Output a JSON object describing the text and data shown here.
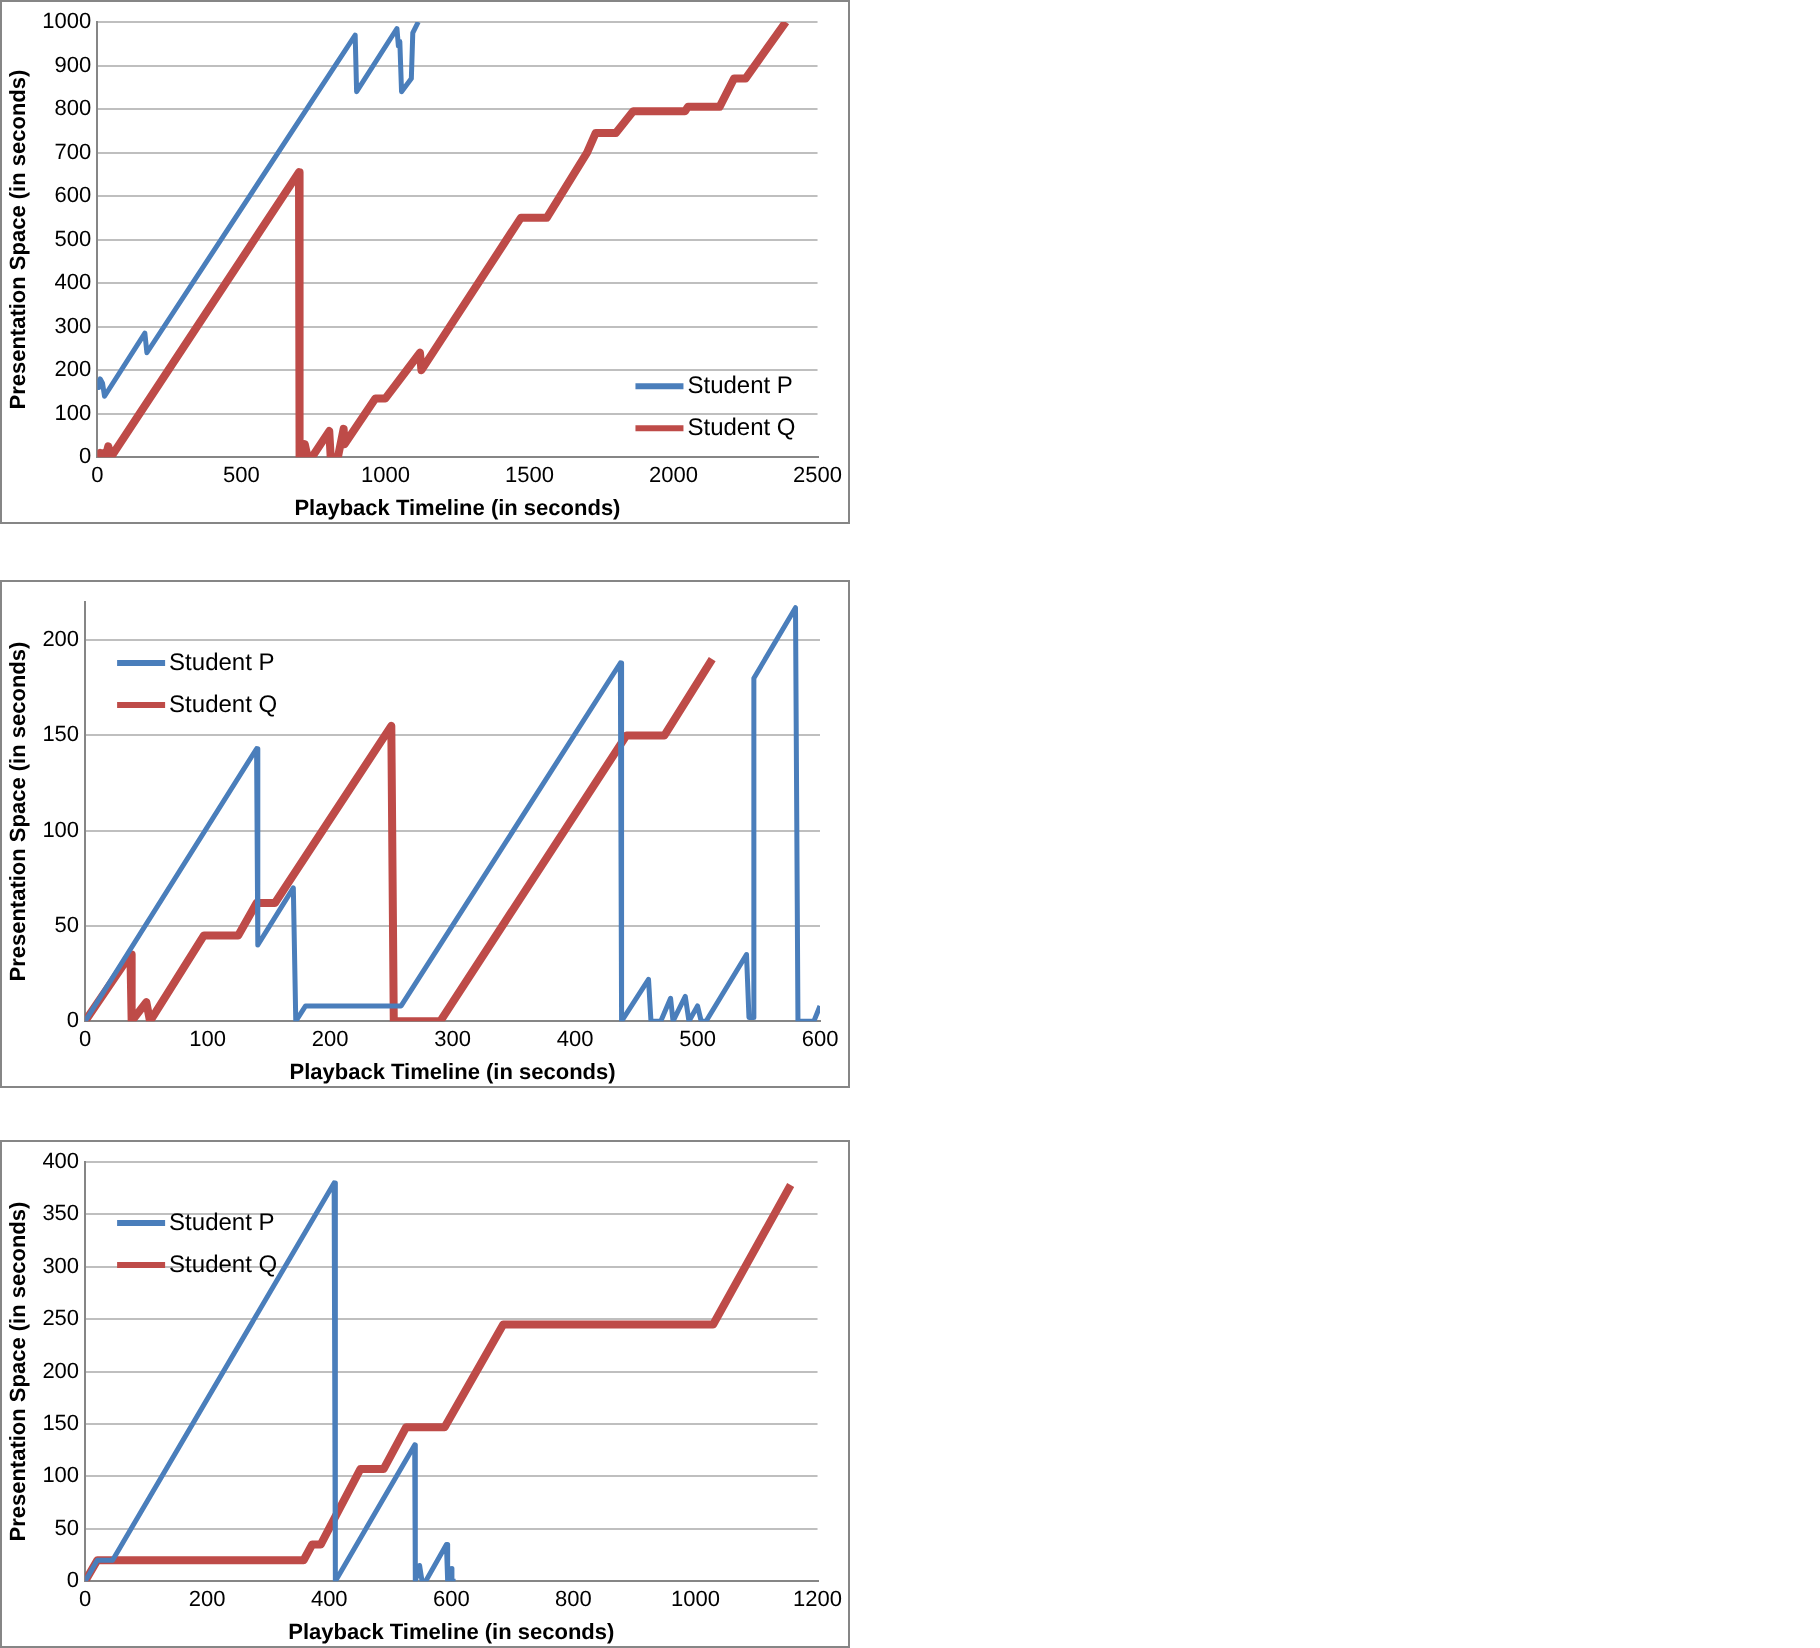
{
  "chart_data": [
    {
      "type": "line",
      "xlabel": "Playback Timeline (in seconds)",
      "ylabel": "Presentation Space (in seconds)",
      "xlim": [
        0,
        2500
      ],
      "xticks": [
        0,
        500,
        1000,
        1500,
        2000,
        2500
      ],
      "ylim": [
        0,
        1000
      ],
      "yticks": [
        0,
        100,
        200,
        300,
        400,
        500,
        600,
        700,
        800,
        900,
        1000
      ],
      "grid": "y",
      "legend": "bottom right",
      "series": [
        {
          "name": "Student P",
          "color": "#4a7ebb",
          "x": [
            0,
            5,
            10,
            18,
            25,
            165,
            172,
            895,
            900,
            1040,
            1045,
            1050,
            1056,
            1090,
            1095,
            1114
          ],
          "values": [
            180,
            160,
            180,
            170,
            140,
            285,
            240,
            970,
            840,
            985,
            945,
            955,
            840,
            870,
            975,
            1000
          ]
        },
        {
          "name": "Student Q",
          "color": "#be4b48",
          "x": [
            0,
            10,
            18,
            25,
            30,
            38,
            45,
            52,
            700,
            702,
            720,
            730,
            745,
            805,
            810,
            835,
            855,
            858,
            965,
            1000,
            1120,
            1125,
            1470,
            1560,
            1700,
            1730,
            1800,
            1860,
            2040,
            2050,
            2160,
            2210,
            2250,
            2390
          ],
          "values": [
            0,
            10,
            5,
            10,
            5,
            25,
            5,
            5,
            655,
            0,
            30,
            0,
            0,
            60,
            0,
            0,
            65,
            30,
            135,
            135,
            240,
            200,
            550,
            550,
            700,
            745,
            745,
            795,
            795,
            805,
            805,
            870,
            870,
            1000
          ]
        }
      ]
    },
    {
      "type": "line",
      "xlabel": "Playback Timeline (in seconds)",
      "ylabel": "Presentation Space (in seconds)",
      "xlim": [
        0,
        600
      ],
      "xticks": [
        0,
        100,
        200,
        300,
        400,
        500,
        600
      ],
      "ylim": [
        0,
        220
      ],
      "yticks": [
        0,
        50,
        100,
        150,
        200
      ],
      "grid": "y",
      "legend": "top left",
      "series": [
        {
          "name": "Student P",
          "color": "#4a7ebb",
          "x": [
            0,
            140,
            141,
            170,
            172,
            180,
            258,
            437,
            438,
            460,
            462,
            470,
            478,
            480,
            490,
            493,
            500,
            503,
            507,
            540,
            542,
            545,
            546,
            580,
            582,
            595,
            600
          ],
          "values": [
            0,
            143,
            40,
            70,
            0,
            8,
            8,
            188,
            0,
            22,
            0,
            0,
            12,
            0,
            13,
            0,
            8,
            0,
            0,
            35,
            2,
            2,
            180,
            217,
            0,
            0,
            8
          ]
        },
        {
          "name": "Student Q",
          "color": "#be4b48",
          "x": [
            0,
            37,
            38,
            50,
            53,
            97,
            125,
            140,
            155,
            250,
            252,
            290,
            442,
            473,
            512
          ],
          "values": [
            0,
            35,
            0,
            10,
            0,
            45,
            45,
            62,
            62,
            155,
            0,
            0,
            150,
            150,
            190
          ]
        }
      ]
    },
    {
      "type": "line",
      "xlabel": "Playback Timeline (in seconds)",
      "ylabel": "Presentation Space (in seconds)",
      "xlim": [
        0,
        1200
      ],
      "xticks": [
        0,
        200,
        400,
        600,
        800,
        1000,
        1200
      ],
      "ylim": [
        0,
        400
      ],
      "yticks": [
        0,
        50,
        100,
        150,
        200,
        250,
        300,
        350,
        400
      ],
      "grid": "y",
      "legend": "top left",
      "series": [
        {
          "name": "Student P",
          "color": "#4a7ebb",
          "x": [
            0,
            20,
            45,
            408,
            410,
            540,
            541,
            548,
            552,
            558,
            592,
            594,
            598,
            601,
            607
          ],
          "values": [
            0,
            20,
            20,
            380,
            0,
            130,
            0,
            15,
            0,
            0,
            35,
            0,
            12,
            0,
            0
          ]
        },
        {
          "name": "Student Q",
          "color": "#be4b48",
          "x": [
            0,
            20,
            358,
            372,
            386,
            451,
            489,
            526,
            589,
            685,
            1029,
            1156
          ],
          "values": [
            0,
            20,
            20,
            35,
            35,
            107,
            107,
            147,
            147,
            245,
            245,
            378
          ]
        }
      ]
    }
  ]
}
